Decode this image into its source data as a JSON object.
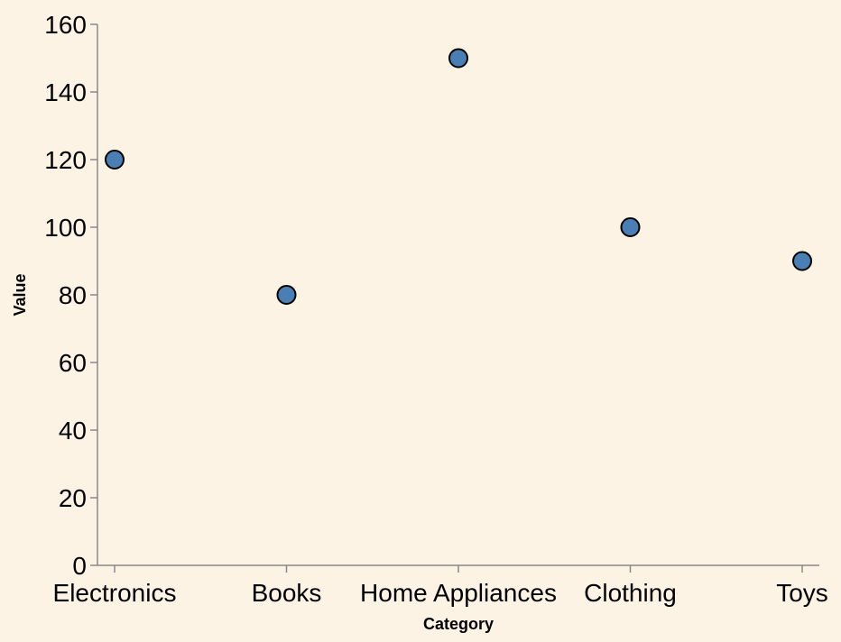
{
  "chart_data": {
    "type": "scatter",
    "categories": [
      "Electronics",
      "Books",
      "Home Appliances",
      "Clothing",
      "Toys"
    ],
    "values": [
      120,
      80,
      150,
      100,
      90
    ],
    "xlabel": "Category",
    "ylabel": "Value",
    "ylim": [
      0,
      160
    ],
    "yticks": [
      0,
      20,
      40,
      60,
      80,
      100,
      120,
      140,
      160
    ],
    "grid": false,
    "point_color": "#4a7fb5",
    "background_color": "#fdf3e5"
  }
}
